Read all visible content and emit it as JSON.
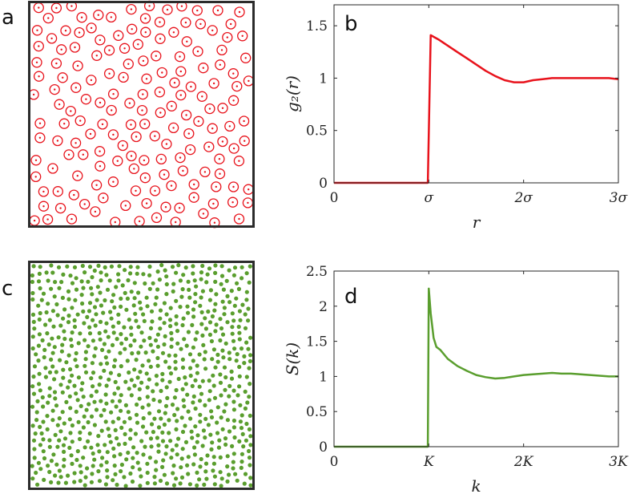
{
  "panel_labels": {
    "a": "a",
    "b": "b",
    "c": "c",
    "d": "d"
  },
  "colors": {
    "red": "#e8121b",
    "green": "#5a9e2e",
    "frame": "#2b2b2b",
    "axis": "#262626"
  },
  "chart_data": [
    {
      "id": "b",
      "type": "line",
      "title": "",
      "xlabel": "r",
      "ylabel": "g₂(r)",
      "xlim": [
        0,
        3
      ],
      "ylim": [
        0,
        1.7
      ],
      "xticks": [
        0,
        1,
        2,
        3
      ],
      "xtick_labels": [
        "0",
        "σ",
        "2σ",
        "3σ"
      ],
      "yticks": [
        0,
        0.5,
        1,
        1.5
      ],
      "ytick_labels": [
        "0",
        "0.5",
        "1",
        "1.5"
      ],
      "series": [
        {
          "name": "g2(r)",
          "color": "#e8121b",
          "x": [
            0,
            0.99,
            1.02,
            1.1,
            1.2,
            1.3,
            1.4,
            1.5,
            1.6,
            1.7,
            1.8,
            1.9,
            2.0,
            2.1,
            2.2,
            2.3,
            2.4,
            2.5,
            2.6,
            2.7,
            2.8,
            2.9,
            3.0
          ],
          "y": [
            0,
            0,
            1.41,
            1.37,
            1.31,
            1.25,
            1.19,
            1.13,
            1.07,
            1.02,
            0.98,
            0.96,
            0.96,
            0.98,
            0.99,
            1.0,
            1.0,
            1.0,
            1.0,
            1.0,
            1.0,
            1.0,
            0.99
          ]
        }
      ]
    },
    {
      "id": "d",
      "type": "line",
      "title": "",
      "xlabel": "k",
      "ylabel": "S(k)",
      "xlim": [
        0,
        3
      ],
      "ylim": [
        0,
        2.5
      ],
      "xticks": [
        0,
        1,
        2,
        3
      ],
      "xtick_labels": [
        "0",
        "K",
        "2K",
        "3K"
      ],
      "yticks": [
        0,
        0.5,
        1,
        1.5,
        2,
        2.5
      ],
      "ytick_labels": [
        "0",
        "0.5",
        "1",
        "1.5",
        "2",
        "2.5"
      ],
      "series": [
        {
          "name": "S(k)",
          "color": "#5a9e2e",
          "x": [
            0,
            0.99,
            1.0,
            1.02,
            1.05,
            1.08,
            1.12,
            1.2,
            1.3,
            1.4,
            1.5,
            1.6,
            1.7,
            1.8,
            1.9,
            2.0,
            2.1,
            2.2,
            2.3,
            2.4,
            2.5,
            2.6,
            2.7,
            2.8,
            2.9,
            3.0
          ],
          "y": [
            0,
            0,
            2.25,
            1.9,
            1.55,
            1.42,
            1.38,
            1.25,
            1.15,
            1.08,
            1.02,
            0.99,
            0.97,
            0.98,
            1.0,
            1.02,
            1.03,
            1.04,
            1.05,
            1.04,
            1.04,
            1.03,
            1.02,
            1.01,
            1.0,
            1.0
          ]
        }
      ]
    }
  ],
  "particle_configs": [
    {
      "id": "a",
      "style": "ring-dot",
      "color": "#e8121b",
      "count": 170,
      "seed": 7
    },
    {
      "id": "c",
      "style": "dot",
      "color": "#5a9e2e",
      "count": 1300,
      "seed": 13
    }
  ]
}
